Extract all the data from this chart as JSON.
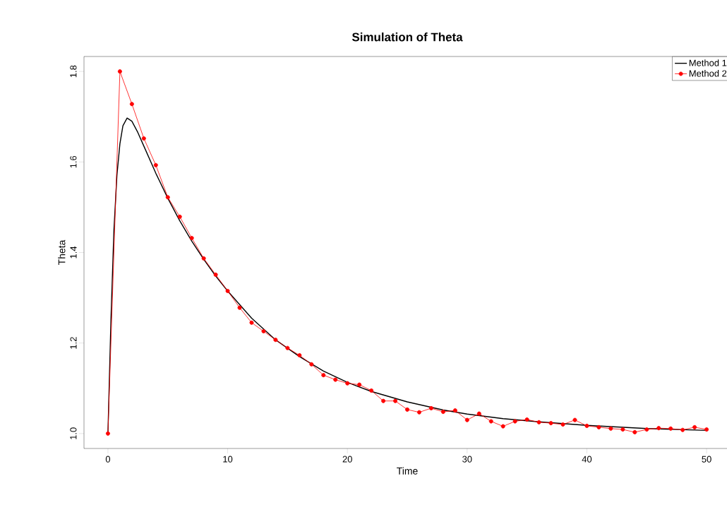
{
  "chart_data": {
    "type": "line",
    "title": "Simulation of Theta",
    "xlabel": "Time",
    "ylabel": "Theta",
    "xlim": [
      -2,
      52
    ],
    "ylim": [
      0.967,
      1.833
    ],
    "xticks": [
      0,
      10,
      20,
      30,
      40,
      50
    ],
    "yticks": [
      {
        "value": 1.0,
        "label": "1.0"
      },
      {
        "value": 1.2,
        "label": "1.2"
      },
      {
        "value": 1.4,
        "label": "1.4"
      },
      {
        "value": 1.6,
        "label": "1.6"
      },
      {
        "value": 1.8,
        "label": "1.8"
      }
    ],
    "grid": false,
    "legend": "top right",
    "series": [
      {
        "name": "Method 1",
        "color": "#000000",
        "marker": "none",
        "x": [
          0,
          0.25,
          0.5,
          0.75,
          1,
          1.25,
          1.6,
          2,
          2.5,
          3,
          4,
          5,
          6,
          7,
          8,
          9,
          10,
          12,
          14,
          16,
          18,
          20,
          22,
          25,
          28,
          30,
          33,
          36,
          40,
          45,
          50
        ],
        "values": [
          1.0,
          1.25,
          1.45,
          1.57,
          1.64,
          1.68,
          1.697,
          1.69,
          1.665,
          1.635,
          1.575,
          1.52,
          1.47,
          1.425,
          1.385,
          1.348,
          1.315,
          1.255,
          1.207,
          1.17,
          1.138,
          1.113,
          1.093,
          1.07,
          1.052,
          1.043,
          1.033,
          1.026,
          1.018,
          1.011,
          1.007
        ]
      },
      {
        "name": "Method 2",
        "color": "#ff0000",
        "marker": "circle",
        "x": [
          0,
          1,
          2,
          3,
          4,
          5,
          6,
          7,
          8,
          9,
          10,
          11,
          12,
          13,
          14,
          15,
          16,
          17,
          18,
          19,
          20,
          21,
          22,
          23,
          24,
          25,
          26,
          27,
          28,
          29,
          30,
          31,
          32,
          33,
          34,
          35,
          36,
          37,
          38,
          39,
          40,
          41,
          42,
          43,
          44,
          45,
          46,
          47,
          48,
          49,
          50
        ],
        "values": [
          1.0,
          1.8,
          1.728,
          1.652,
          1.593,
          1.522,
          1.479,
          1.432,
          1.387,
          1.351,
          1.315,
          1.278,
          1.245,
          1.226,
          1.207,
          1.189,
          1.173,
          1.153,
          1.129,
          1.119,
          1.111,
          1.108,
          1.095,
          1.072,
          1.072,
          1.053,
          1.047,
          1.056,
          1.048,
          1.051,
          1.03,
          1.044,
          1.027,
          1.016,
          1.027,
          1.031,
          1.025,
          1.023,
          1.02,
          1.03,
          1.017,
          1.014,
          1.011,
          1.009,
          1.003,
          1.009,
          1.012,
          1.011,
          1.008,
          1.014,
          1.009
        ]
      }
    ]
  }
}
